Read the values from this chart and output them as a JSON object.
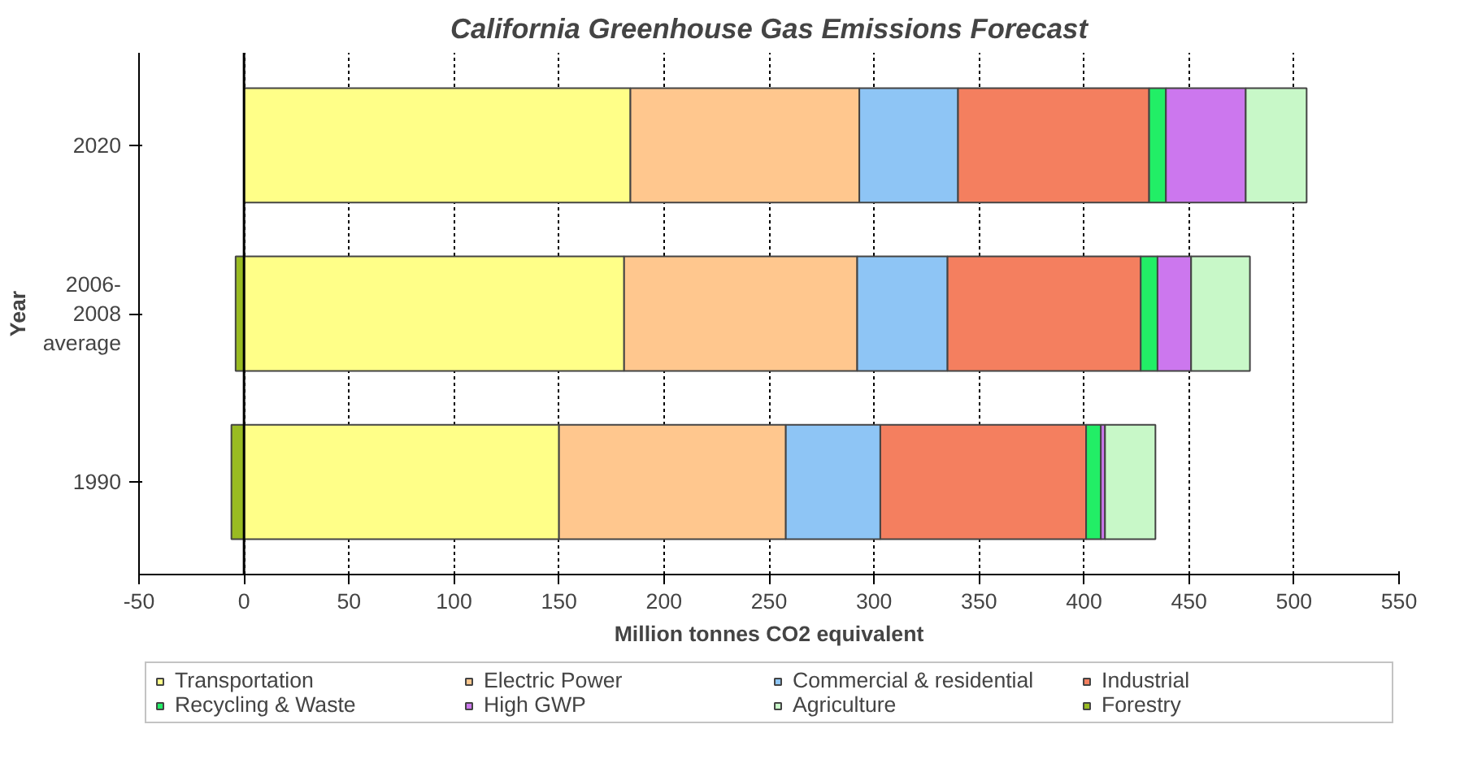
{
  "chart_data": {
    "type": "bar",
    "orientation": "horizontal",
    "stacked": true,
    "title": "California Greenhouse Gas Emissions Forecast",
    "xlabel": "Million tonnes CO2 equivalent",
    "ylabel": "Year",
    "categories": [
      "2020",
      "2006-2008 average",
      "1990"
    ],
    "series": [
      {
        "name": "Transportation",
        "color": "#ffff88",
        "values": [
          184,
          181,
          150
        ]
      },
      {
        "name": "Electric Power",
        "color": "#ffc78e",
        "values": [
          109,
          111,
          108
        ]
      },
      {
        "name": "Commercial & residential",
        "color": "#8ec5f5",
        "values": [
          47,
          43,
          45
        ]
      },
      {
        "name": "Industrial",
        "color": "#f47f5f",
        "values": [
          91,
          92,
          98
        ]
      },
      {
        "name": "Recycling & Waste",
        "color": "#22ee66",
        "values": [
          8,
          8,
          7
        ]
      },
      {
        "name": "High GWP",
        "color": "#cc77ee",
        "values": [
          38,
          16,
          2
        ]
      },
      {
        "name": "Agriculture",
        "color": "#c8f8c8",
        "values": [
          29,
          28,
          24
        ]
      },
      {
        "name": "Forestry",
        "color": "#99bb22",
        "values": [
          null,
          -4,
          -6
        ]
      }
    ],
    "xlim": [
      -50,
      550
    ],
    "xticks": [
      -50,
      0,
      50,
      100,
      150,
      200,
      250,
      300,
      350,
      400,
      450,
      500,
      550
    ],
    "grid": "x",
    "legend": "bottom"
  }
}
